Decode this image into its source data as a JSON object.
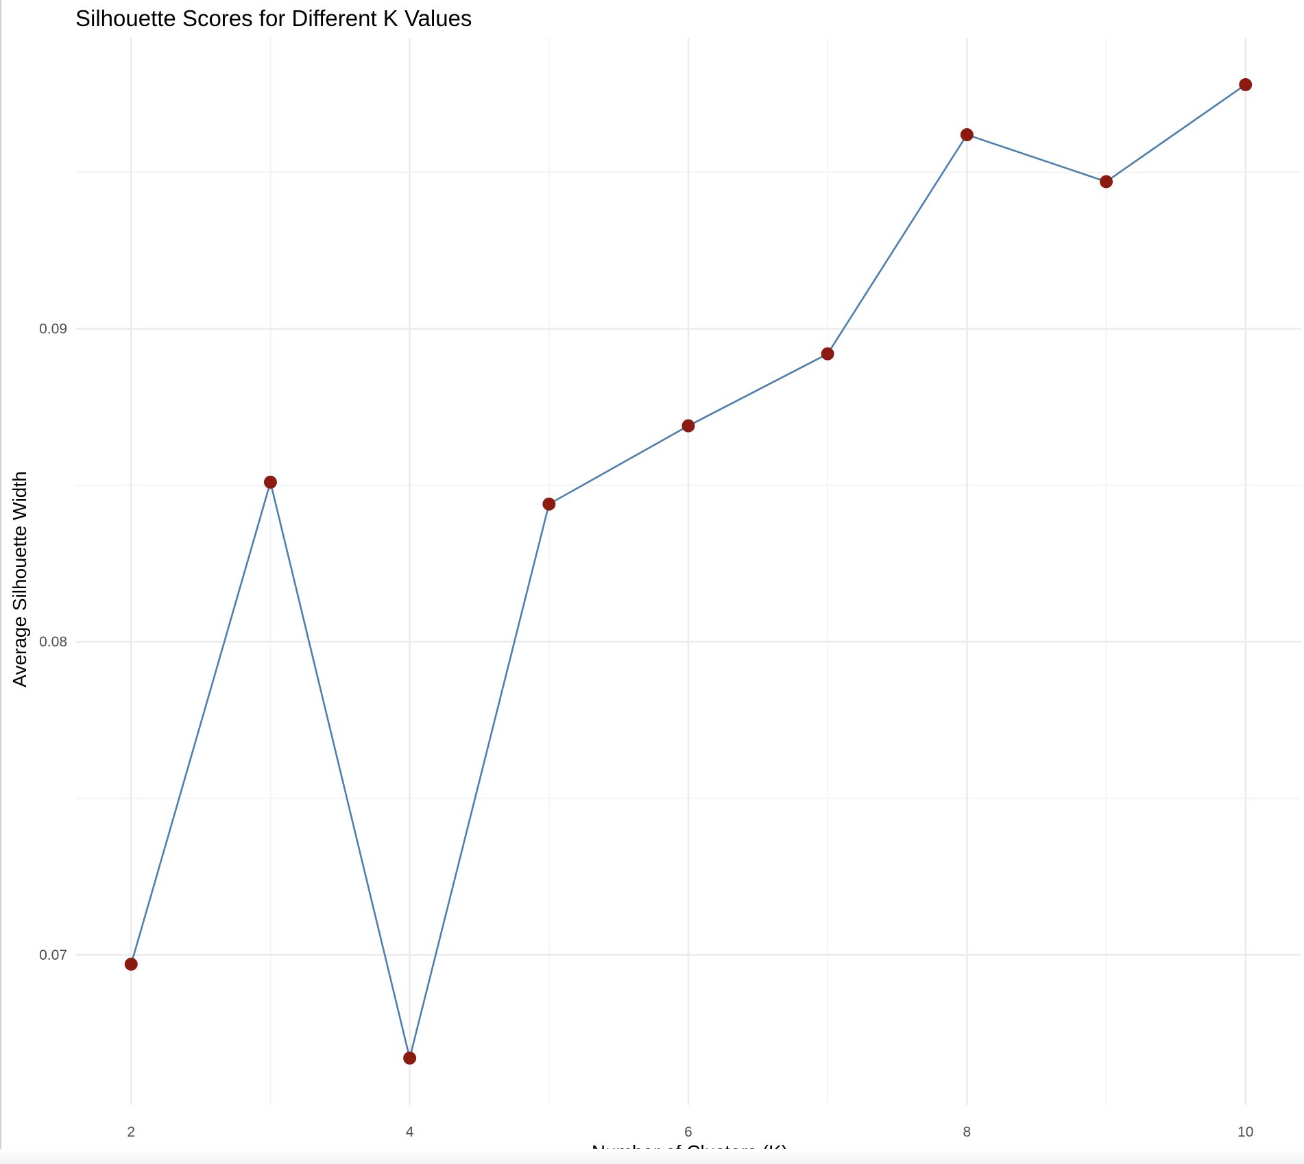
{
  "chart_data": {
    "type": "line",
    "title": "Silhouette Scores for Different K Values",
    "xlabel": "Number of Clusters (K)",
    "ylabel": "Average Silhouette Width",
    "x": [
      2,
      3,
      4,
      5,
      6,
      7,
      8,
      9,
      10
    ],
    "series": [
      {
        "values": [
          0.0697,
          0.0851,
          0.0667,
          0.0844,
          0.0869,
          0.0892,
          0.0962,
          0.0947,
          0.0978
        ]
      }
    ],
    "x_ticks": [
      2,
      4,
      6,
      8,
      10
    ],
    "x_tick_labels": [
      "2",
      "4",
      "6",
      "8",
      "10"
    ],
    "y_ticks": [
      0.07,
      0.08,
      0.09
    ],
    "y_tick_labels": [
      "0.07",
      "0.08",
      "0.09"
    ],
    "xlim": [
      1.6,
      10.4
    ],
    "ylim": [
      0.0652,
      0.0993
    ],
    "grid": true,
    "legend": "none",
    "colors": {
      "line": "#4f7faf",
      "point": "#8b1a10",
      "grid": "#ebebeb"
    }
  }
}
